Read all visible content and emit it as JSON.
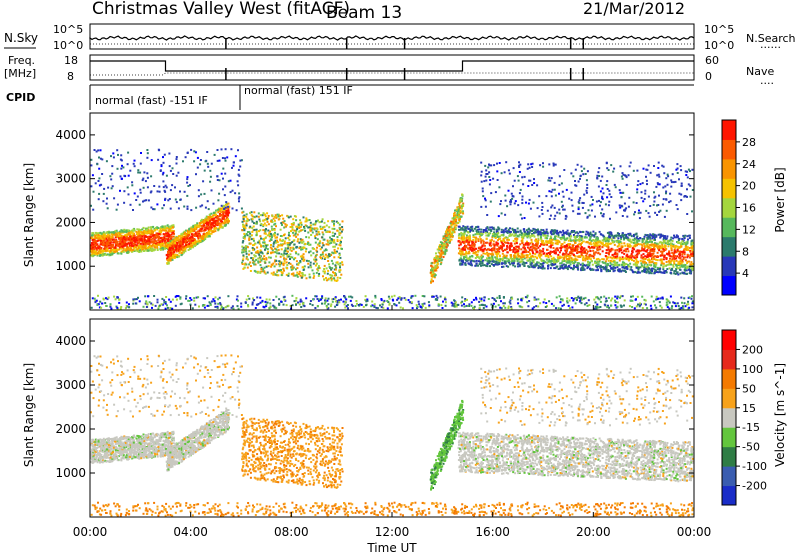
{
  "header": {
    "title": "Christmas Valley West (fitACF)",
    "beam": "Beam 13",
    "date": "21/Mar/2012"
  },
  "top_panels": {
    "nsky": {
      "label": "N.Sky",
      "left_ticks": [
        "10^5",
        "10^0"
      ],
      "right_ticks": [
        "10^5",
        "10^0"
      ],
      "right_label": "N.Search",
      "right_legend": "......"
    },
    "freq": {
      "label_line1": "Freq.",
      "label_line2": "[MHz]",
      "left_ticks": [
        "18",
        "8"
      ],
      "right_ticks": [
        "60",
        "0"
      ],
      "right_label": "Nave",
      "right_legend": "...."
    },
    "cpid": {
      "label": "CPID",
      "mode1": "normal (fast) -151 IF",
      "mode2": "normal (fast) 151 IF"
    }
  },
  "chart_data": [
    {
      "type": "heatmap",
      "ylabel": "Slant Range [km]",
      "y_ticks": [
        "1000",
        "2000",
        "3000",
        "4000"
      ],
      "ylim": [
        0,
        4500
      ],
      "xlim": [
        0,
        24
      ],
      "colorbar": {
        "label": "Power [dB]",
        "ticks": [
          "28",
          "24",
          "20",
          "16",
          "12",
          "8",
          "4"
        ],
        "range": [
          0,
          30
        ],
        "colors": [
          "#0000ff",
          "#2838b8",
          "#2b7a6c",
          "#56b85c",
          "#a4d63e",
          "#f5c200",
          "#f99400",
          "#fb5a00",
          "#ff1500"
        ]
      }
    },
    {
      "type": "heatmap",
      "ylabel": "Slant Range [km]",
      "y_ticks": [
        "1000",
        "2000",
        "3000",
        "4000"
      ],
      "ylim": [
        0,
        4500
      ],
      "xlim": [
        0,
        24
      ],
      "colorbar": {
        "label": "Velocity [m s^-1]",
        "ticks": [
          "200",
          "100",
          "50",
          "15",
          "-15",
          "-50",
          "-100",
          "-200"
        ],
        "range": [
          -250,
          250
        ],
        "colors": [
          "#1a2dc8",
          "#3a5db0",
          "#2f7d45",
          "#63c63d",
          "#c8c8c0",
          "#f7a21b",
          "#f47a00",
          "#e62a1c",
          "#ff0000"
        ]
      }
    }
  ],
  "x_axis": {
    "label": "Time UT",
    "ticks": [
      "00:00",
      "04:00",
      "08:00",
      "12:00",
      "16:00",
      "20:00",
      "00:00"
    ]
  }
}
